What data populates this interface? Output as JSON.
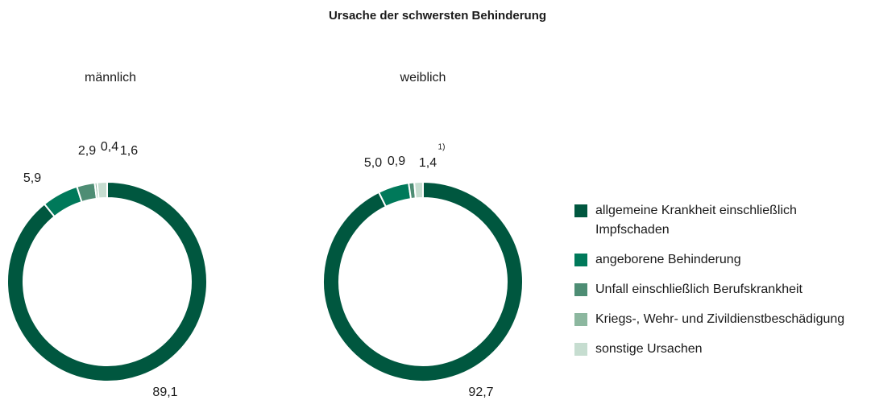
{
  "title": "Ursache der schwersten Behinderung",
  "categories": [
    "allgemeine Krankheit einschließlich Impfschaden",
    "angeborene Behinderung",
    "Unfall einschließlich Berufskrankheit",
    "Kriegs-, Wehr- und Zivildienstbe­schädigung",
    "sonstige Ursachen"
  ],
  "colors": [
    "#00573f",
    "#00795a",
    "#4e8d74",
    "#8cb79f",
    "#c6ddd0"
  ],
  "chart_data": [
    {
      "type": "pie",
      "title": "männlich",
      "values": [
        89.1,
        5.9,
        2.9,
        0.4,
        1.6
      ],
      "value_labels": [
        "89,1",
        "5,9",
        "2,9",
        "0,4",
        "1,6"
      ]
    },
    {
      "type": "pie",
      "title": "weiblich",
      "values": [
        92.7,
        5.0,
        0.9,
        null,
        1.4
      ],
      "value_labels": [
        "92,7",
        "5,0",
        "0,9",
        null,
        "1,4"
      ],
      "label_note": "1)"
    }
  ]
}
